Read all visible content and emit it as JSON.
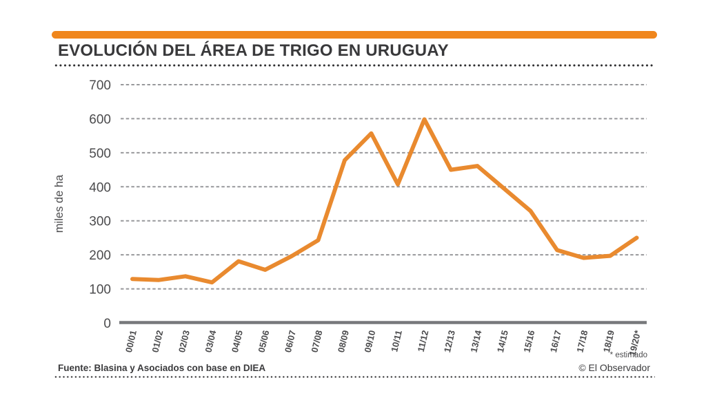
{
  "header": {
    "title": "EVOLUCIÓN DEL ÁREA DE TRIGO EN URUGUAY"
  },
  "footer": {
    "source": "Fuente: Blasina y Asociados con base en DIEA",
    "credit": "© El Observador",
    "estimate_note": "* estimado"
  },
  "colors": {
    "accent_bar": "#F0861C",
    "line": "#E98A2F",
    "gridline": "#97989B",
    "axis": "#77787B",
    "tick_text": "#4B4B4D",
    "title_text": "#39393B"
  },
  "chart_data": {
    "type": "line",
    "title": "EVOLUCIÓN DEL ÁREA DE TRIGO EN URUGUAY",
    "xlabel": "",
    "ylabel": "miles de ha",
    "categories": [
      "00/01",
      "01/02",
      "02/03",
      "03/04",
      "04/05",
      "05/06",
      "06/07",
      "07/08",
      "08/09",
      "09/10",
      "10/11",
      "11/12",
      "12/13",
      "13/14",
      "14/15",
      "15/16",
      "16/17",
      "17/18",
      "18/19",
      "19/20*"
    ],
    "values": [
      129,
      126,
      137,
      119,
      181,
      156,
      196,
      243,
      478,
      557,
      407,
      598,
      450,
      461,
      395,
      329,
      214,
      191,
      197,
      250
    ],
    "series_name": "Área de trigo en Uruguay (miles de ha)",
    "ylim": [
      0,
      700
    ],
    "yticks": [
      0,
      100,
      200,
      300,
      400,
      500,
      600,
      700
    ],
    "grid": "horizontal-dashed",
    "legend": "none",
    "note": "19/20 es valor estimado (* estimado)"
  }
}
